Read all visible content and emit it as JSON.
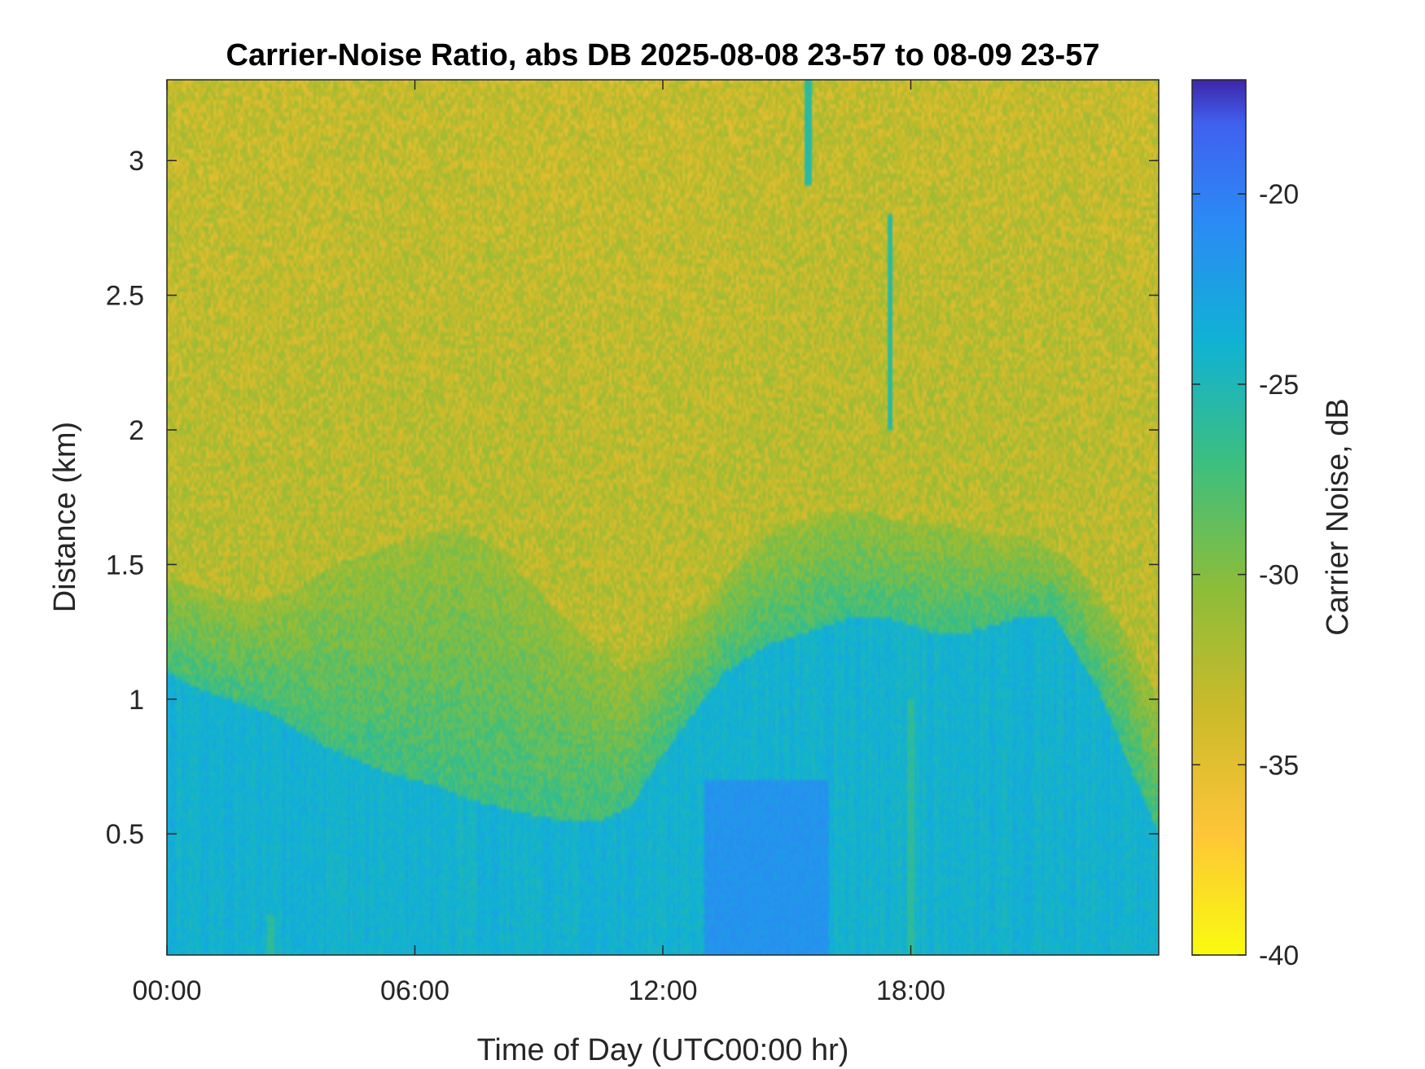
{
  "chart_data": {
    "type": "heatmap",
    "title": "Carrier-Noise Ratio, abs DB 2025-08-08 23-57 to 08-09 23-57",
    "xlabel": "Time of Day (UTC00:00 hr)",
    "ylabel": "Distance (km)",
    "colorbar_label": "Carrier Noise, dB",
    "xlim_hours": [
      0,
      24
    ],
    "ylim_km": [
      0.05,
      3.3
    ],
    "clim_db": [
      -40,
      -17
    ],
    "colormap": "parula (reversed: yellow = -40 dB, dark blue = -17 dB)",
    "x_ticks": [
      {
        "value": 0,
        "label": "00:00"
      },
      {
        "value": 6,
        "label": "06:00"
      },
      {
        "value": 12,
        "label": "12:00"
      },
      {
        "value": 18,
        "label": "18:00"
      }
    ],
    "y_ticks": [
      {
        "value": 0.5,
        "label": "0.5"
      },
      {
        "value": 1,
        "label": "1"
      },
      {
        "value": 1.5,
        "label": "1.5"
      },
      {
        "value": 2,
        "label": "2"
      },
      {
        "value": 2.5,
        "label": "2.5"
      },
      {
        "value": 3,
        "label": "3"
      }
    ],
    "colorbar_ticks": [
      {
        "value": -20,
        "label": "-20"
      },
      {
        "value": -25,
        "label": "-25"
      },
      {
        "value": -30,
        "label": "-30"
      },
      {
        "value": -35,
        "label": "-35"
      },
      {
        "value": -40,
        "label": "-40"
      }
    ],
    "boundary_layer_top_km": {
      "hours": [
        0,
        0.6,
        1.5,
        2.5,
        3.5,
        4.5,
        5.5,
        6.5,
        7.5,
        8.5,
        9.5,
        10.5,
        11.2,
        11.8,
        12.5,
        13.5,
        14.5,
        15.5,
        16.5,
        17.5,
        18.5,
        19.5,
        20.5,
        21.5,
        22.5,
        23.3,
        24
      ],
      "values": [
        1.1,
        1.05,
        1.0,
        0.95,
        0.85,
        0.78,
        0.72,
        0.68,
        0.62,
        0.58,
        0.55,
        0.55,
        0.6,
        0.75,
        0.9,
        1.1,
        1.2,
        1.25,
        1.3,
        1.3,
        1.25,
        1.25,
        1.3,
        1.3,
        1.05,
        0.75,
        0.5
      ]
    },
    "mixed_layer_top_km": {
      "hours": [
        0,
        1,
        2,
        3,
        4,
        5,
        6,
        7,
        8,
        9,
        10,
        11,
        12,
        13,
        14,
        15,
        16,
        17,
        18,
        19,
        20,
        21,
        22,
        23,
        24
      ],
      "values": [
        1.45,
        1.4,
        1.35,
        1.4,
        1.5,
        1.55,
        1.6,
        1.65,
        1.55,
        1.4,
        1.25,
        1.1,
        1.2,
        1.35,
        1.55,
        1.65,
        1.7,
        1.7,
        1.65,
        1.65,
        1.6,
        1.6,
        1.5,
        1.3,
        1.0
      ]
    },
    "cloud_streaks": [
      {
        "hour": 15.5,
        "from_km": 2.9,
        "to_km": 3.3
      },
      {
        "hour": 17.5,
        "from_km": 2.0,
        "to_km": 2.8
      },
      {
        "hour": 18.0,
        "from_km": 0.05,
        "to_km": 1.0
      },
      {
        "hour": 2.5,
        "from_km": 0.05,
        "to_km": 0.2
      }
    ]
  }
}
